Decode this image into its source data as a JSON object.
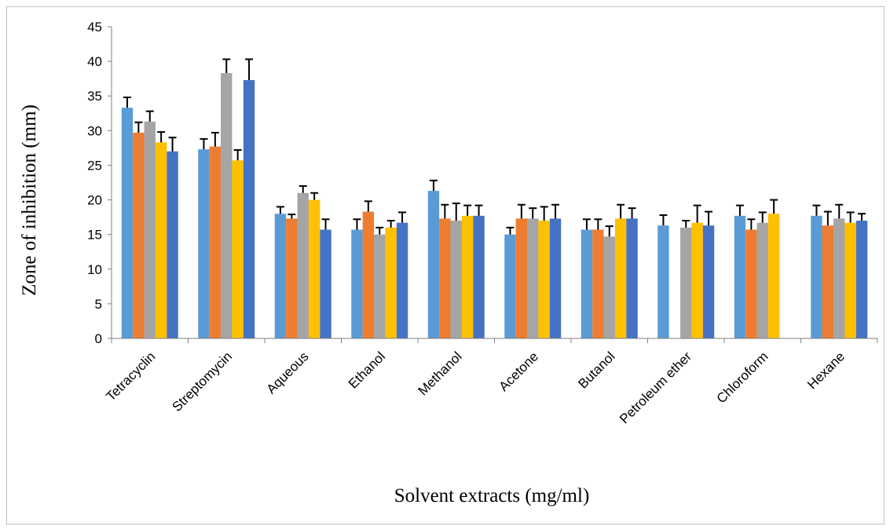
{
  "chart_data": {
    "type": "bar",
    "xlabel": "Solvent extracts (mg/ml)",
    "ylabel": "Zone of inhibition (mm)",
    "ylim": [
      0,
      45
    ],
    "yticks": [
      0,
      5,
      10,
      15,
      20,
      25,
      30,
      35,
      40,
      45
    ],
    "grid": false,
    "legend": "none",
    "categories": [
      "Tetracyclin",
      "Streptomycin",
      "Aqueous",
      "Ethanol",
      "Methanol",
      "Acetone",
      "Butanol",
      "Petroleum ether",
      "Chloroform",
      "Hexane"
    ],
    "series": [
      {
        "color": "#5B9BD5",
        "values": [
          33.3,
          27.3,
          18.0,
          15.7,
          21.3,
          15.0,
          15.7,
          16.3,
          17.7,
          17.7
        ],
        "errors": [
          1.5,
          1.5,
          1.0,
          1.5,
          1.5,
          1.0,
          1.5,
          1.5,
          1.5,
          1.5
        ]
      },
      {
        "color": "#ED7D31",
        "values": [
          29.7,
          27.7,
          17.3,
          18.3,
          17.3,
          17.3,
          15.7,
          null,
          15.7,
          16.3
        ],
        "errors": [
          1.5,
          2.0,
          0.6,
          1.5,
          2.0,
          2.0,
          1.5,
          null,
          1.5,
          2.0
        ]
      },
      {
        "color": "#A5A5A5",
        "values": [
          31.3,
          38.3,
          21.0,
          15.0,
          17.0,
          17.3,
          14.7,
          16.0,
          16.7,
          17.3
        ],
        "errors": [
          1.5,
          2.0,
          1.0,
          1.0,
          2.5,
          1.5,
          1.5,
          1.0,
          1.5,
          2.0
        ]
      },
      {
        "color": "#FFC000",
        "values": [
          28.3,
          25.7,
          20.0,
          16.0,
          17.7,
          17.0,
          17.3,
          16.7,
          18.0,
          16.7
        ],
        "errors": [
          1.5,
          1.5,
          1.0,
          1.0,
          1.5,
          2.0,
          2.0,
          2.5,
          2.0,
          1.5
        ]
      },
      {
        "color": "#4472C4",
        "values": [
          27.0,
          37.3,
          15.7,
          16.7,
          17.7,
          17.3,
          17.3,
          16.3,
          null,
          17.0
        ],
        "errors": [
          2.0,
          3.0,
          1.5,
          1.5,
          1.5,
          2.0,
          1.5,
          2.0,
          null,
          1.0
        ]
      }
    ]
  }
}
